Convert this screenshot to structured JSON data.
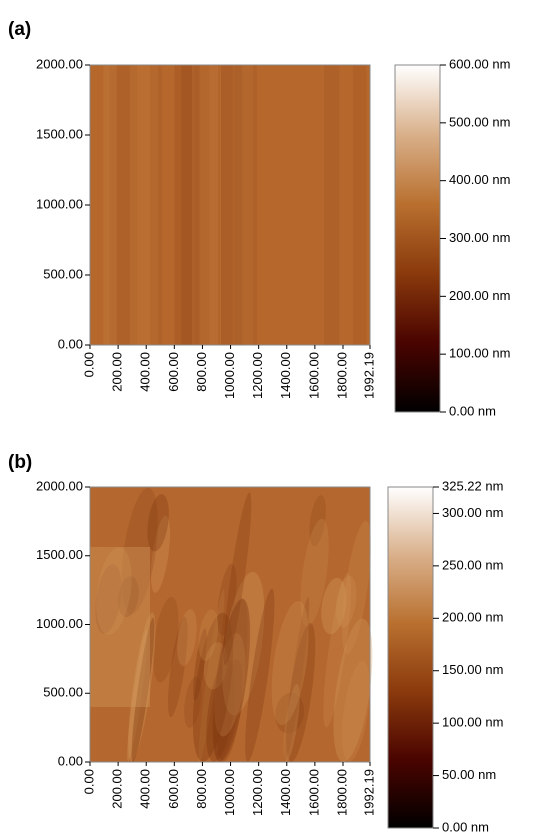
{
  "chart_data": [
    {
      "type": "image",
      "label": "(a)",
      "colormap": [
        "#000000",
        "#4a0400",
        "#8a3a0c",
        "#b9702f",
        "#d9b08a",
        "#ffffff"
      ],
      "xlim": [
        0,
        1992.19
      ],
      "xticks": [
        {
          "value": 0,
          "label": "0.00"
        },
        {
          "value": 200,
          "label": "200.00"
        },
        {
          "value": 400,
          "label": "400.00"
        },
        {
          "value": 600,
          "label": "600.00"
        },
        {
          "value": 800,
          "label": "800.00"
        },
        {
          "value": 1000,
          "label": "1000.00"
        },
        {
          "value": 1200,
          "label": "1200.00"
        },
        {
          "value": 1400,
          "label": "1400.00"
        },
        {
          "value": 1600,
          "label": "1600.00"
        },
        {
          "value": 1800,
          "label": "1800.00"
        },
        {
          "value": 1992.19,
          "label": "1992.19"
        }
      ],
      "ylim": [
        0,
        2000
      ],
      "yticks": [
        {
          "value": 0,
          "label": "0.00"
        },
        {
          "value": 500,
          "label": "500.00"
        },
        {
          "value": 1000,
          "label": "1000.00"
        },
        {
          "value": 1500,
          "label": "1500.00"
        },
        {
          "value": 2000,
          "label": "2000.00"
        }
      ],
      "clim": [
        0,
        600
      ],
      "cticks": [
        {
          "value": 0,
          "label": "0.00 nm"
        },
        {
          "value": 100,
          "label": "100.00 nm"
        },
        {
          "value": 200,
          "label": "200.00 nm"
        },
        {
          "value": 300,
          "label": "300.00 nm"
        },
        {
          "value": 400,
          "label": "400.00 nm"
        },
        {
          "value": 500,
          "label": "500.00 nm"
        },
        {
          "value": 600,
          "label": "600.00 nm"
        }
      ]
    },
    {
      "type": "image",
      "label": "(b)",
      "colormap": [
        "#000000",
        "#4a0400",
        "#8a3a0c",
        "#b9702f",
        "#d9b08a",
        "#ffffff"
      ],
      "xlim": [
        0,
        1992.19
      ],
      "xticks": [
        {
          "value": 0,
          "label": "0.00"
        },
        {
          "value": 200,
          "label": "200.00"
        },
        {
          "value": 400,
          "label": "400.00"
        },
        {
          "value": 600,
          "label": "600.00"
        },
        {
          "value": 800,
          "label": "800.00"
        },
        {
          "value": 1000,
          "label": "1000.00"
        },
        {
          "value": 1200,
          "label": "1200.00"
        },
        {
          "value": 1400,
          "label": "1400.00"
        },
        {
          "value": 1600,
          "label": "1600.00"
        },
        {
          "value": 1800,
          "label": "1800.00"
        },
        {
          "value": 1992.19,
          "label": "1992.19"
        }
      ],
      "ylim": [
        0,
        2000
      ],
      "yticks": [
        {
          "value": 0,
          "label": "0.00"
        },
        {
          "value": 500,
          "label": "500.00"
        },
        {
          "value": 1000,
          "label": "1000.00"
        },
        {
          "value": 1500,
          "label": "1500.00"
        },
        {
          "value": 2000,
          "label": "2000.00"
        }
      ],
      "clim": [
        0,
        325.22
      ],
      "cticks": [
        {
          "value": 0,
          "label": "0.00 nm"
        },
        {
          "value": 50,
          "label": "50.00 nm"
        },
        {
          "value": 100,
          "label": "100.00 nm"
        },
        {
          "value": 150,
          "label": "150.00 nm"
        },
        {
          "value": 200,
          "label": "200.00 nm"
        },
        {
          "value": 250,
          "label": "250.00 nm"
        },
        {
          "value": 300,
          "label": "300.00 nm"
        },
        {
          "value": 325.22,
          "label": "325.22 nm"
        }
      ]
    }
  ]
}
